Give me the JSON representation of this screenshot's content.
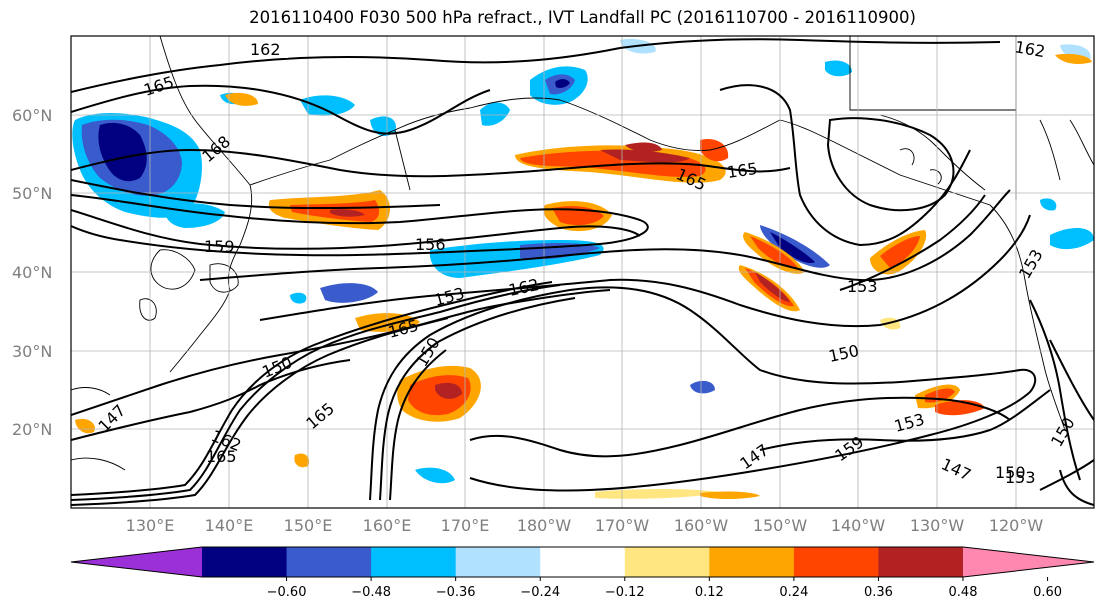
{
  "title": "2016110400 F030 500 hPa refract., IVT Landfall PC (2016110700 - 2016110900)",
  "lat_labels": [
    "60°N",
    "50°N",
    "40°N",
    "30°N",
    "20°N"
  ],
  "lon_labels": [
    "130°E",
    "140°E",
    "150°E",
    "160°E",
    "170°E",
    "180°W",
    "170°W",
    "160°W",
    "150°W",
    "140°W",
    "130°W",
    "120°W"
  ],
  "contour_labels": [
    "162",
    "165",
    "168",
    "159",
    "156",
    "153",
    "162",
    "165",
    "165",
    "165",
    "150",
    "150",
    "147",
    "162",
    "165",
    "165",
    "150",
    "147",
    "159",
    "153",
    "147",
    "150",
    "153",
    "162",
    "153",
    "153",
    "150"
  ],
  "colorbar": {
    "ticks": [
      "−0.60",
      "−0.48",
      "−0.36",
      "−0.24",
      "−0.12",
      "0.12",
      "0.24",
      "0.36",
      "0.48",
      "0.60"
    ],
    "colors": [
      "#9b30d8",
      "#000080",
      "#3a5bcc",
      "#00bfff",
      "#b0e2ff",
      "#ffffff",
      "#ffe680",
      "#ffa500",
      "#ff4500",
      "#b22222",
      "#ff88b0"
    ]
  }
}
